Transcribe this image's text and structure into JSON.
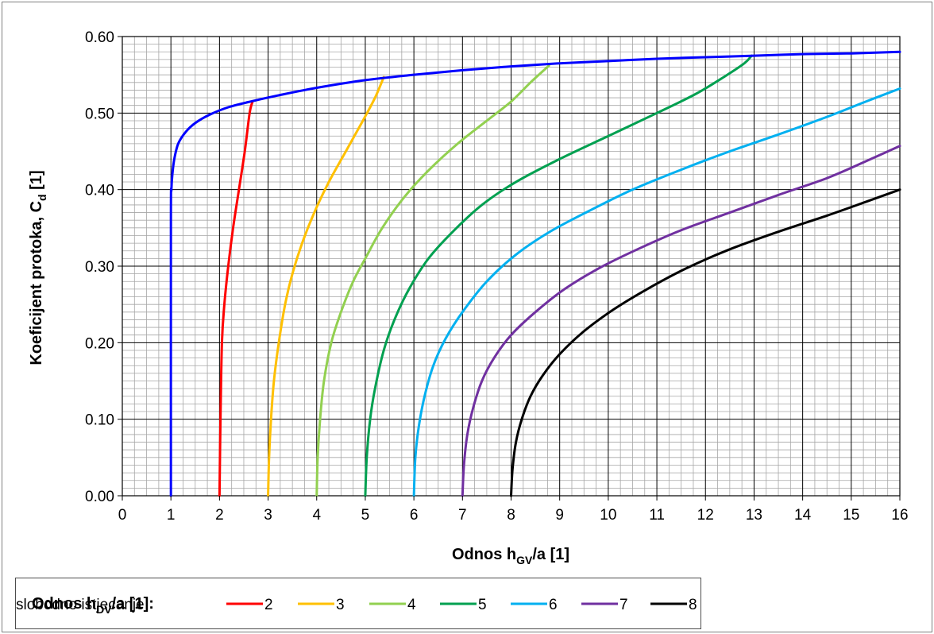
{
  "chart_data": {
    "type": "line",
    "xlabel_main": "Odnos h",
    "xlabel_sub": "GV",
    "xlabel_tail": "/a [1]",
    "ylabel_main": "Koeficijent protoka, C",
    "ylabel_sub": "d",
    "ylabel_tail": " [1]",
    "xlim": [
      0,
      16
    ],
    "ylim": [
      0.0,
      0.6
    ],
    "x_ticks": [
      "0",
      "1",
      "2",
      "3",
      "4",
      "5",
      "6",
      "7",
      "8",
      "9",
      "10",
      "11",
      "12",
      "13",
      "14",
      "15",
      "16"
    ],
    "y_ticks": [
      "0.00",
      "0.10",
      "0.20",
      "0.30",
      "0.40",
      "0.50",
      "0.60"
    ],
    "grid": true,
    "legend_title_main": "Odnos h",
    "legend_title_sub": "DV",
    "legend_title_tail": "/a [1]:",
    "series": [
      {
        "name": "2",
        "color": "#ff0000",
        "x": [
          2.0,
          2.02,
          2.05,
          2.1,
          2.18,
          2.28,
          2.4,
          2.52,
          2.62,
          2.68
        ],
        "y": [
          0.0,
          0.1,
          0.2,
          0.25,
          0.3,
          0.35,
          0.4,
          0.45,
          0.5,
          0.515
        ]
      },
      {
        "name": "3",
        "color": "#ffc000",
        "x": [
          3.0,
          3.02,
          3.06,
          3.12,
          3.22,
          3.35,
          3.5,
          3.7,
          3.95,
          4.25,
          4.6,
          4.95,
          5.2,
          5.38
        ],
        "y": [
          0.0,
          0.05,
          0.1,
          0.15,
          0.2,
          0.25,
          0.29,
          0.33,
          0.37,
          0.41,
          0.45,
          0.49,
          0.52,
          0.547
        ]
      },
      {
        "name": "4",
        "color": "#92d050",
        "x": [
          4.0,
          4.02,
          4.07,
          4.15,
          4.3,
          4.5,
          4.75,
          5.0,
          5.35,
          5.8,
          6.3,
          6.9,
          7.5,
          8.0,
          8.4,
          8.78
        ],
        "y": [
          0.0,
          0.05,
          0.1,
          0.15,
          0.2,
          0.24,
          0.28,
          0.31,
          0.35,
          0.39,
          0.425,
          0.46,
          0.49,
          0.515,
          0.54,
          0.562
        ]
      },
      {
        "name": "5",
        "color": "#00a050",
        "x": [
          5.0,
          5.03,
          5.1,
          5.2,
          5.38,
          5.6,
          5.9,
          6.3,
          6.8,
          7.4,
          8.1,
          9.0,
          10.0,
          11.0,
          11.8,
          12.4,
          12.8,
          12.95
        ],
        "y": [
          0.0,
          0.05,
          0.1,
          0.14,
          0.19,
          0.23,
          0.27,
          0.31,
          0.345,
          0.38,
          0.41,
          0.44,
          0.47,
          0.5,
          0.525,
          0.548,
          0.565,
          0.575
        ]
      },
      {
        "name": "6",
        "color": "#00b0f0",
        "x": [
          6.0,
          6.03,
          6.1,
          6.22,
          6.4,
          6.65,
          7.0,
          7.5,
          8.1,
          8.8,
          9.6,
          10.5,
          11.5,
          12.5,
          13.5,
          14.5,
          15.3,
          16.0
        ],
        "y": [
          0.0,
          0.05,
          0.09,
          0.13,
          0.17,
          0.205,
          0.24,
          0.28,
          0.315,
          0.345,
          0.372,
          0.4,
          0.426,
          0.45,
          0.472,
          0.495,
          0.515,
          0.532
        ]
      },
      {
        "name": "7",
        "color": "#7030a0",
        "x": [
          7.0,
          7.03,
          7.1,
          7.22,
          7.4,
          7.65,
          8.0,
          8.5,
          9.1,
          9.8,
          10.6,
          11.5,
          12.5,
          13.5,
          14.5,
          15.3,
          16.0
        ],
        "y": [
          0.0,
          0.04,
          0.08,
          0.115,
          0.15,
          0.18,
          0.21,
          0.24,
          0.27,
          0.297,
          0.322,
          0.347,
          0.37,
          0.393,
          0.415,
          0.437,
          0.457
        ]
      },
      {
        "name": "8",
        "color": "#000000",
        "x": [
          8.0,
          8.03,
          8.1,
          8.22,
          8.4,
          8.65,
          9.0,
          9.5,
          10.1,
          10.8,
          11.6,
          12.5,
          13.5,
          14.5,
          15.3,
          16.0
        ],
        "y": [
          0.0,
          0.035,
          0.07,
          0.1,
          0.13,
          0.157,
          0.185,
          0.215,
          0.243,
          0.27,
          0.297,
          0.322,
          0.345,
          0.366,
          0.384,
          0.4
        ]
      },
      {
        "name": "slobodno istjecanje",
        "color": "#0000ff",
        "x": [
          1.0,
          1.0,
          1.01,
          1.03,
          1.07,
          1.15,
          1.3,
          1.5,
          1.8,
          2.2,
          2.7,
          3.2,
          4.0,
          5.0,
          6.0,
          7.0,
          8.0,
          9.0,
          10.0,
          11.0,
          12.0,
          13.0,
          14.0,
          15.0,
          16.0
        ],
        "y": [
          0.0,
          0.36,
          0.4,
          0.42,
          0.44,
          0.46,
          0.475,
          0.487,
          0.498,
          0.508,
          0.516,
          0.523,
          0.533,
          0.543,
          0.55,
          0.556,
          0.561,
          0.565,
          0.568,
          0.571,
          0.573,
          0.575,
          0.577,
          0.578,
          0.58
        ]
      }
    ]
  }
}
